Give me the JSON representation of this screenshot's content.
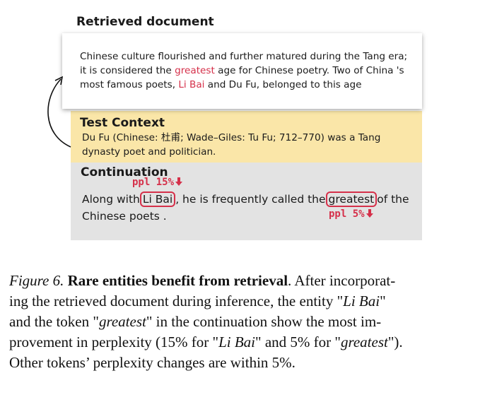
{
  "figure": {
    "retrieved": {
      "title": "Retrieved document",
      "text": {
        "p1": "Chinese culture flourished and further matured during the Tang era; it is considered the ",
        "w1": "greatest",
        "p2": " age for Chinese poetry. Two of China 's most famous poets, ",
        "w2": "Li Bai",
        "p3": " and Du Fu, belonged to this age"
      }
    },
    "test_context": {
      "title": "Test Context",
      "text": "Du Fu (Chinese: 杜甫; Wade–Giles: Tu Fu; 712–770) was a Tang dynasty poet and politician."
    },
    "continuation": {
      "title": "Continuation",
      "ppl_1": "ppl 15%",
      "ppl_2": "ppl 5%",
      "text": {
        "p1": "Along with",
        "w1": "Li Bai",
        "p2": ", he is frequently called the",
        "w2": "greatest",
        "p3": "of the Chinese poets ."
      }
    },
    "colors": {
      "highlight": "#d5304a",
      "test_context_bg": "#fae6a8",
      "continuation_bg": "#e3e3e3"
    }
  },
  "caption": {
    "label": "Figure 6.",
    "bold": "Rare entities benefit from retrieval",
    "l1": ". After incorporat-",
    "l2a": "ing the retrieved document during inference, the entity \"",
    "l2i": "Li Bai",
    "l2b": "\"",
    "l3a": "and the token \"",
    "l3i": "greatest",
    "l3b": "\" in the continuation show the most im-",
    "l4a": "provement in perplexity (15% for \"",
    "l4i": "Li Bai",
    "l4b": "\" and 5% for \"",
    "l4i2": "greatest",
    "l4c": "\").",
    "l5": "Other tokens’ perplexity changes are within 5%."
  }
}
